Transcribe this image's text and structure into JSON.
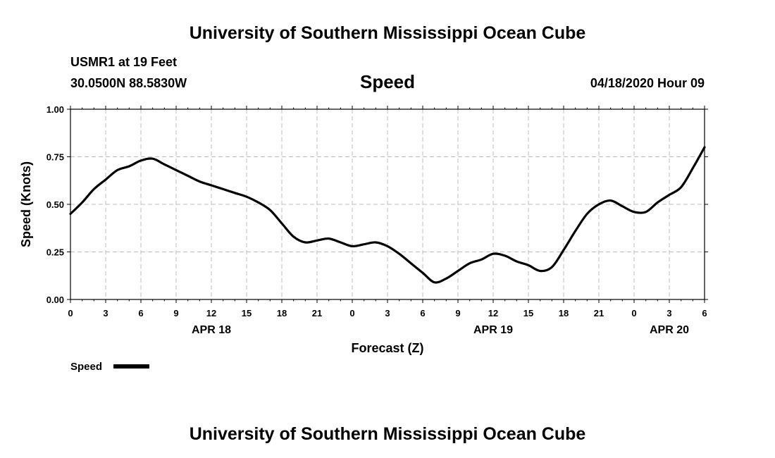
{
  "header": {
    "title": "University of Southern Mississippi Ocean Cube",
    "station": "USMR1 at 19 Feet",
    "coords": "30.0500N 88.5830W",
    "variable": "Speed",
    "timestamp": "04/18/2020 Hour 09"
  },
  "footer": {
    "title": "University of Southern Mississippi Ocean Cube"
  },
  "legend": {
    "label": "Speed"
  },
  "chart_data": {
    "type": "line",
    "title": "Speed",
    "xlabel": "Forecast (Z)",
    "ylabel": "Speed (Knots)",
    "ylim": [
      0,
      1
    ],
    "xlim": [
      "2020-04-18T00Z",
      "2020-04-20T06Z"
    ],
    "grid": true,
    "legend_position": "bottom-left",
    "y_ticks": [
      "0.00",
      "0.25",
      "0.50",
      "0.75",
      "1.00"
    ],
    "x_ticks": [
      "0",
      "3",
      "6",
      "9",
      "12",
      "15",
      "18",
      "21",
      "0",
      "3",
      "6",
      "9",
      "12",
      "15",
      "18",
      "21",
      "0",
      "3",
      "6"
    ],
    "date_labels": [
      {
        "label": "APR 18",
        "at": "2020-04-18T12Z"
      },
      {
        "label": "APR 19",
        "at": "2020-04-19T12Z"
      },
      {
        "label": "APR 20",
        "at": "2020-04-20T03Z"
      }
    ],
    "series": [
      {
        "name": "Speed",
        "color": "#000000",
        "points": [
          [
            "2020-04-18T00Z",
            0.45
          ],
          [
            "2020-04-18T01Z",
            0.51
          ],
          [
            "2020-04-18T02Z",
            0.58
          ],
          [
            "2020-04-18T03Z",
            0.63
          ],
          [
            "2020-04-18T04Z",
            0.68
          ],
          [
            "2020-04-18T05Z",
            0.7
          ],
          [
            "2020-04-18T06Z",
            0.73
          ],
          [
            "2020-04-18T07Z",
            0.74
          ],
          [
            "2020-04-18T08Z",
            0.71
          ],
          [
            "2020-04-18T09Z",
            0.68
          ],
          [
            "2020-04-18T10Z",
            0.65
          ],
          [
            "2020-04-18T11Z",
            0.62
          ],
          [
            "2020-04-18T12Z",
            0.6
          ],
          [
            "2020-04-18T13Z",
            0.58
          ],
          [
            "2020-04-18T14Z",
            0.56
          ],
          [
            "2020-04-18T15Z",
            0.54
          ],
          [
            "2020-04-18T16Z",
            0.51
          ],
          [
            "2020-04-18T17Z",
            0.47
          ],
          [
            "2020-04-18T18Z",
            0.4
          ],
          [
            "2020-04-18T19Z",
            0.33
          ],
          [
            "2020-04-18T20Z",
            0.3
          ],
          [
            "2020-04-18T21Z",
            0.31
          ],
          [
            "2020-04-18T22Z",
            0.32
          ],
          [
            "2020-04-18T23Z",
            0.3
          ],
          [
            "2020-04-19T00Z",
            0.28
          ],
          [
            "2020-04-19T01Z",
            0.29
          ],
          [
            "2020-04-19T02Z",
            0.3
          ],
          [
            "2020-04-19T03Z",
            0.28
          ],
          [
            "2020-04-19T04Z",
            0.24
          ],
          [
            "2020-04-19T05Z",
            0.19
          ],
          [
            "2020-04-19T06Z",
            0.14
          ],
          [
            "2020-04-19T07Z",
            0.09
          ],
          [
            "2020-04-19T08Z",
            0.11
          ],
          [
            "2020-04-19T09Z",
            0.15
          ],
          [
            "2020-04-19T10Z",
            0.19
          ],
          [
            "2020-04-19T11Z",
            0.21
          ],
          [
            "2020-04-19T12Z",
            0.24
          ],
          [
            "2020-04-19T13Z",
            0.23
          ],
          [
            "2020-04-19T14Z",
            0.2
          ],
          [
            "2020-04-19T15Z",
            0.18
          ],
          [
            "2020-04-19T16Z",
            0.15
          ],
          [
            "2020-04-19T17Z",
            0.17
          ],
          [
            "2020-04-19T18Z",
            0.26
          ],
          [
            "2020-04-19T19Z",
            0.36
          ],
          [
            "2020-04-19T20Z",
            0.45
          ],
          [
            "2020-04-19T21Z",
            0.5
          ],
          [
            "2020-04-19T22Z",
            0.52
          ],
          [
            "2020-04-19T23Z",
            0.49
          ],
          [
            "2020-04-20T00Z",
            0.46
          ],
          [
            "2020-04-20T01Z",
            0.46
          ],
          [
            "2020-04-20T02Z",
            0.51
          ],
          [
            "2020-04-20T03Z",
            0.55
          ],
          [
            "2020-04-20T04Z",
            0.59
          ],
          [
            "2020-04-20T05Z",
            0.69
          ],
          [
            "2020-04-20T06Z",
            0.8
          ]
        ]
      }
    ]
  }
}
